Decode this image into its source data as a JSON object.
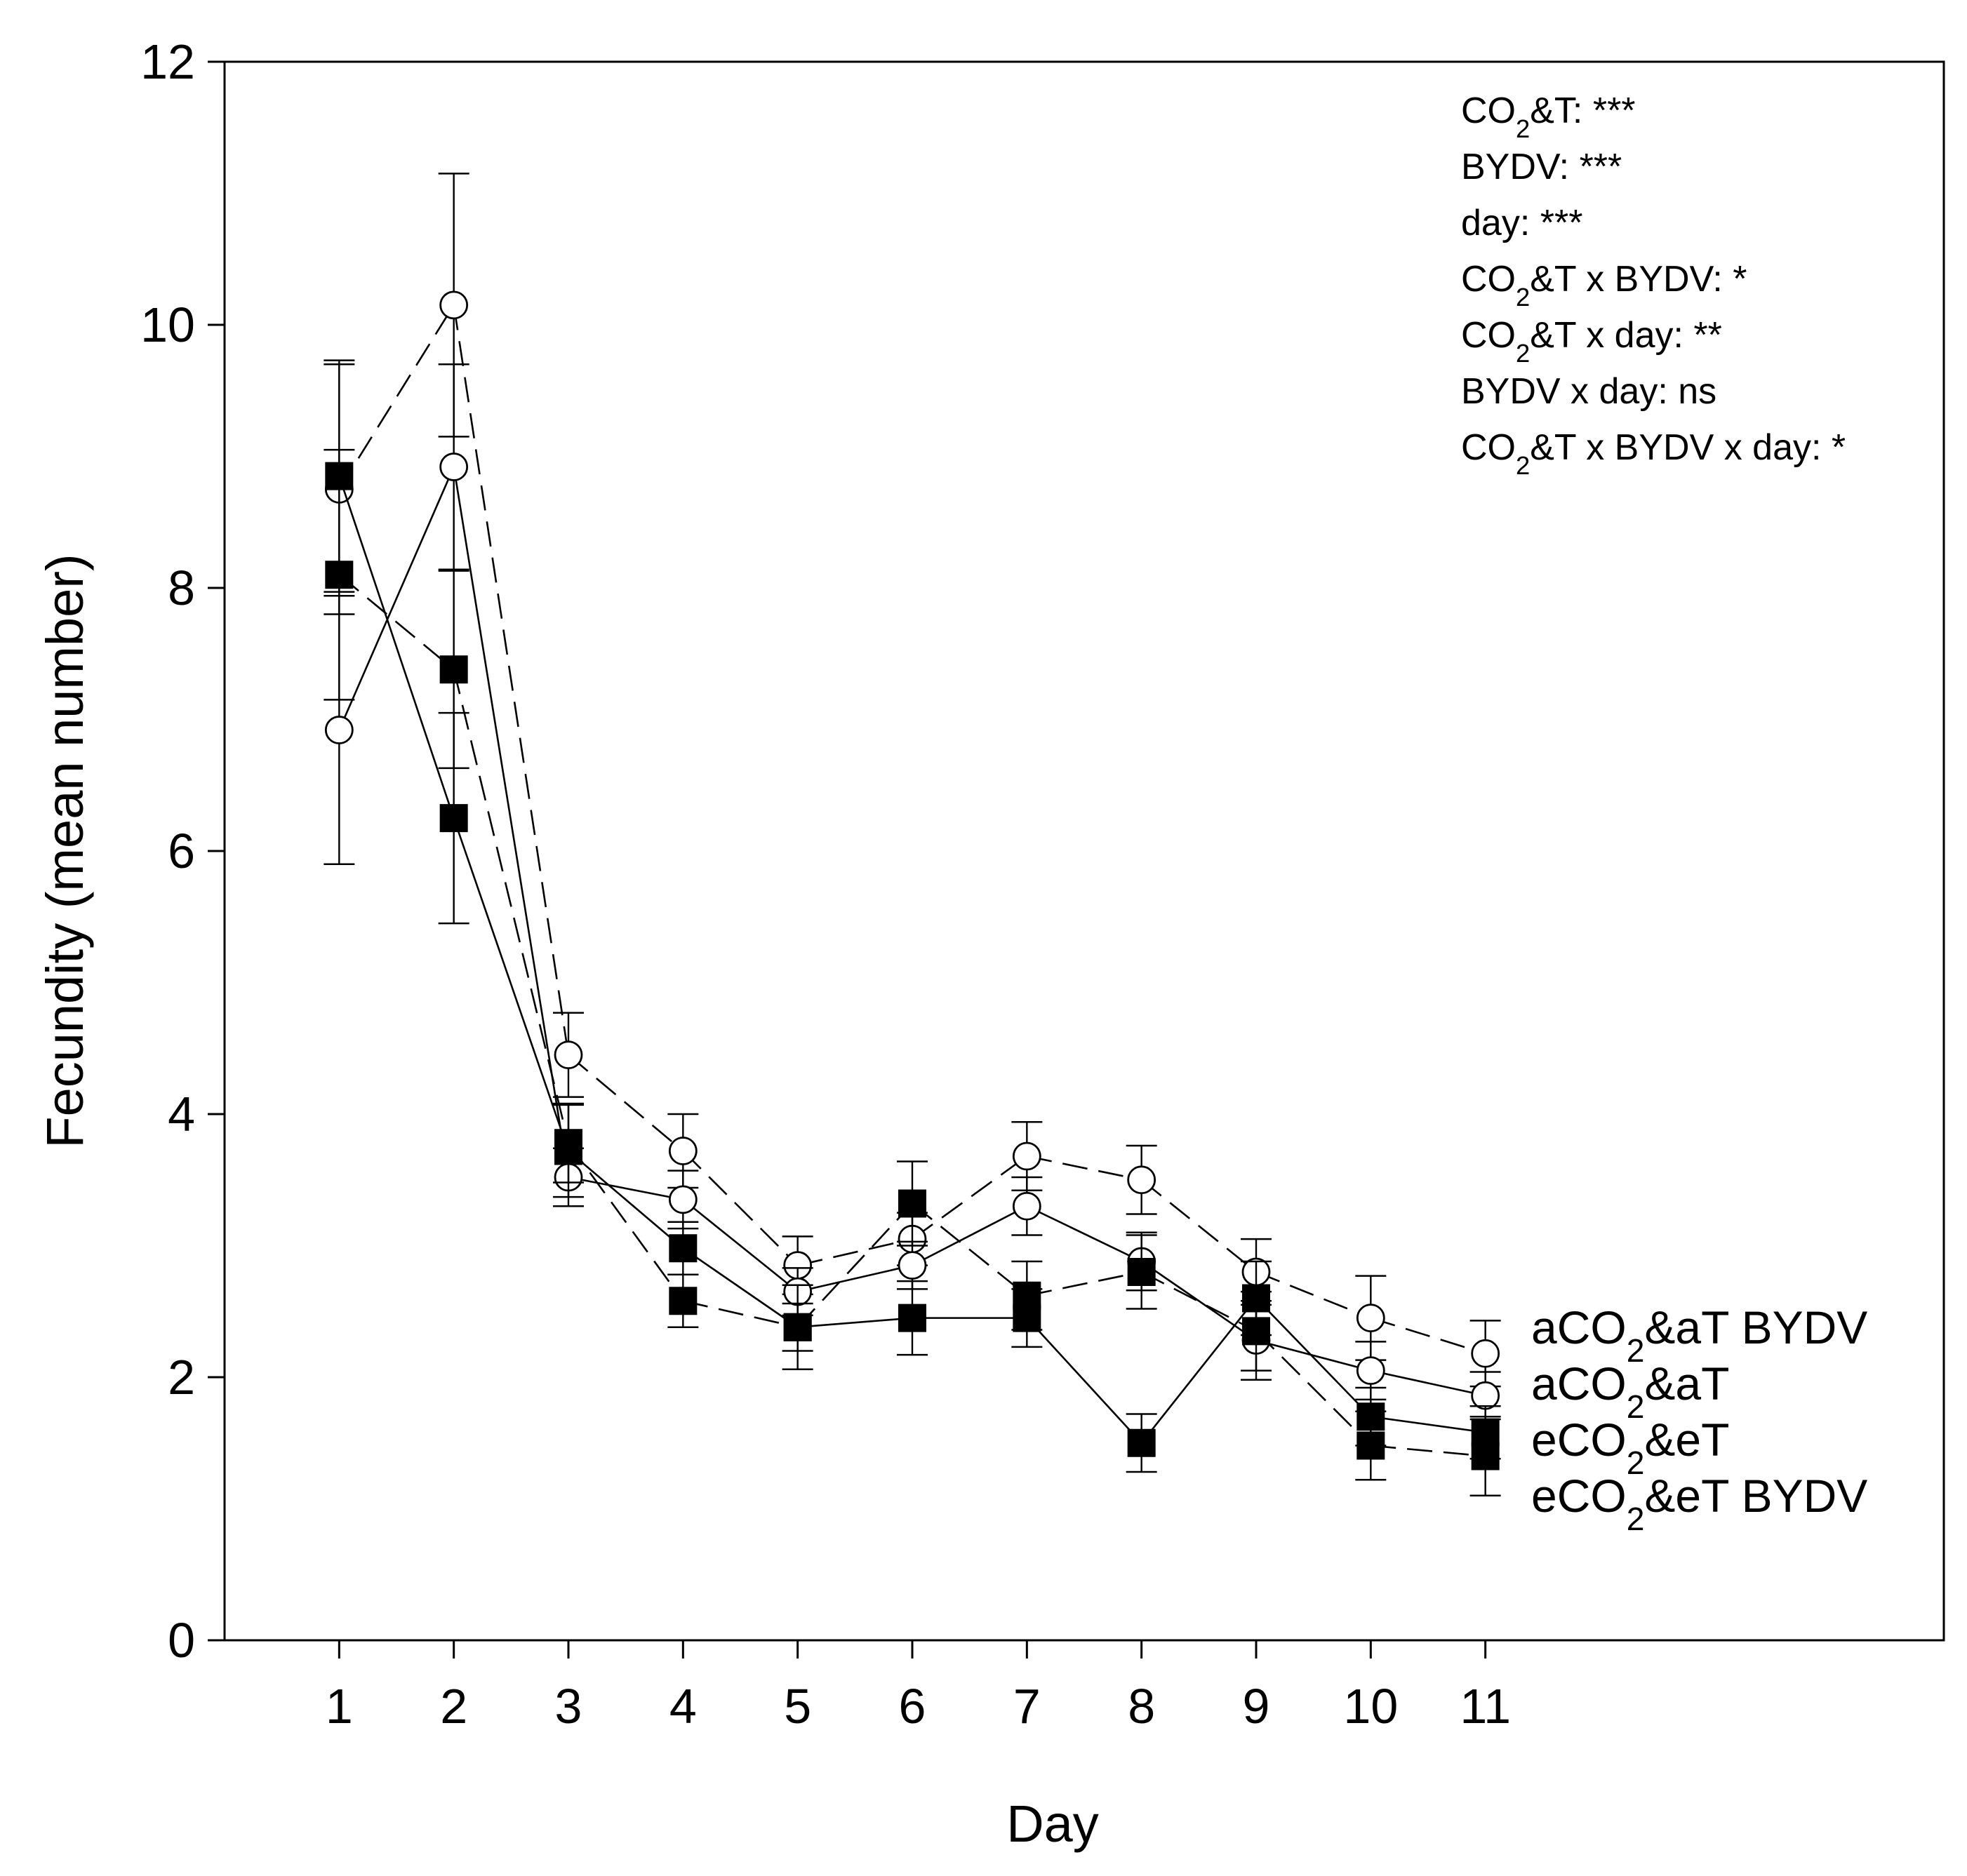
{
  "chart_data": {
    "type": "line",
    "xlabel": "Day",
    "ylabel": "Fecundity (mean number)",
    "x": [
      1,
      2,
      3,
      4,
      5,
      6,
      7,
      8,
      9,
      10,
      11
    ],
    "xlim": [
      0,
      15
    ],
    "ylim": [
      0,
      12
    ],
    "yticks": [
      0,
      2,
      4,
      6,
      8,
      10,
      12
    ],
    "grid": false,
    "series": [
      {
        "name": "aCO2&aT BYDV",
        "legend_parts": [
          "aCO",
          "2",
          "&aT BYDV"
        ],
        "marker": "open-circle",
        "line": "dashed",
        "values": [
          8.75,
          10.15,
          4.45,
          3.72,
          2.85,
          3.05,
          3.68,
          3.5,
          2.8,
          2.45,
          2.18
        ],
        "errors": [
          0.95,
          1.0,
          0.32,
          0.28,
          0.22,
          0.2,
          0.26,
          0.26,
          0.25,
          0.32,
          0.25
        ]
      },
      {
        "name": "aCO2&aT",
        "legend_parts": [
          "aCO",
          "2",
          "&aT"
        ],
        "marker": "open-circle",
        "line": "solid",
        "values": [
          6.92,
          8.92,
          3.52,
          3.35,
          2.65,
          2.85,
          3.3,
          2.88,
          2.28,
          2.05,
          1.86
        ],
        "errors": [
          1.02,
          0.78,
          0.22,
          0.22,
          0.18,
          0.18,
          0.22,
          0.22,
          0.3,
          0.22,
          0.18
        ]
      },
      {
        "name": "eCO2&eT",
        "legend_parts": [
          "eCO",
          "2",
          "&eT"
        ],
        "marker": "filled-square",
        "line": "solid",
        "values": [
          8.85,
          6.25,
          3.72,
          2.98,
          2.38,
          2.45,
          2.45,
          1.5,
          2.6,
          1.7,
          1.58
        ],
        "errors": [
          0.88,
          0.8,
          0.35,
          0.2,
          0.18,
          0.28,
          0.22,
          0.22,
          0.28,
          0.22,
          0.2
        ]
      },
      {
        "name": "eCO2&eT BYDV",
        "legend_parts": [
          "eCO",
          "2",
          "&eT BYDV"
        ],
        "marker": "filled-square",
        "line": "dashed",
        "values": [
          8.1,
          7.38,
          3.78,
          2.58,
          2.38,
          3.32,
          2.62,
          2.8,
          2.35,
          1.48,
          1.4
        ],
        "errors": [
          0.95,
          0.75,
          0.3,
          0.2,
          0.32,
          0.32,
          0.26,
          0.28,
          0.3,
          0.26,
          0.3
        ]
      }
    ],
    "annotations": [
      {
        "parts": [
          "CO",
          "2",
          "&T: ***"
        ]
      },
      {
        "parts": [
          "BYDV: ***"
        ]
      },
      {
        "parts": [
          "day: ***"
        ]
      },
      {
        "parts": [
          "CO",
          "2",
          "&T x BYDV: *"
        ]
      },
      {
        "parts": [
          "CO",
          "2",
          "&T x day: **"
        ]
      },
      {
        "parts": [
          "BYDV x day: ns"
        ]
      },
      {
        "parts": [
          "CO",
          "2",
          "&T x BYDV x day: *"
        ]
      }
    ],
    "legend_position": "right, near series end"
  }
}
